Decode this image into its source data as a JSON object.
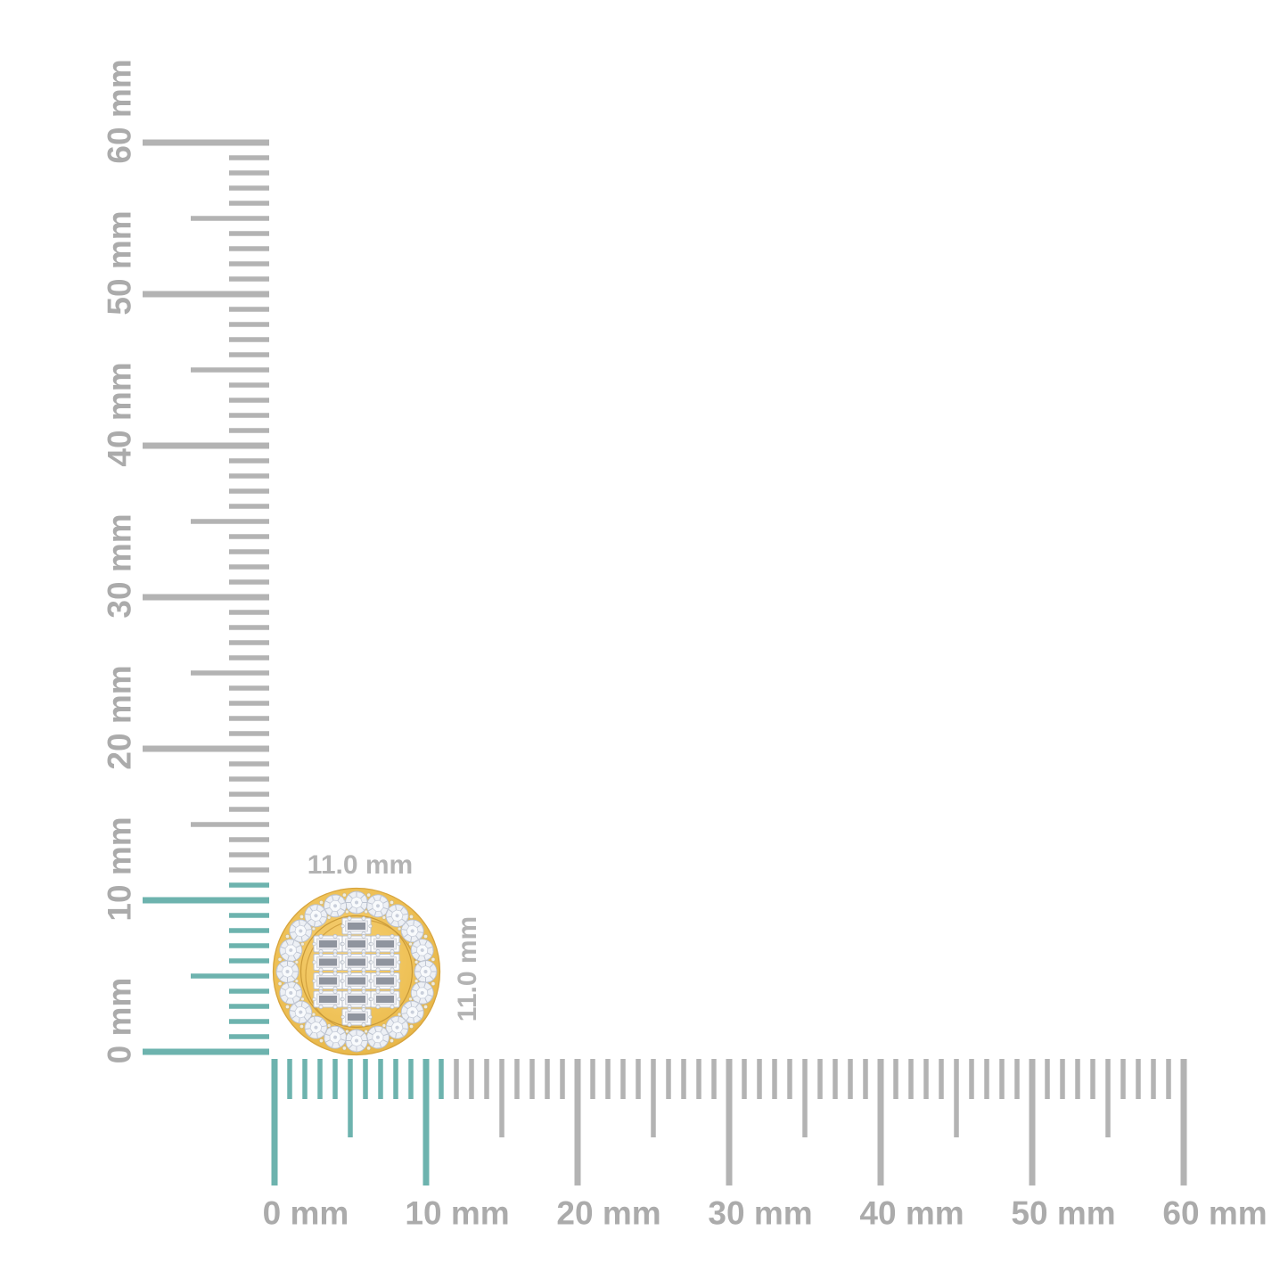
{
  "rulers": {
    "unit": "mm",
    "min_mm": 0,
    "max_mm": 60,
    "minor_step_mm": 1,
    "medium_step_mm": 5,
    "major_step_mm": 10,
    "highlight_extent_mm": 11,
    "tick_color": "#b3b3b3",
    "highlight_color": "#6db3ae",
    "label_color": "#ababab",
    "horizontal_labels": [
      "0 mm",
      "10 mm",
      "20 mm",
      "30 mm",
      "40 mm",
      "50 mm",
      "60 mm"
    ],
    "vertical_labels": [
      "0 mm",
      "10 mm",
      "20 mm",
      "30 mm",
      "40 mm",
      "50 mm",
      "60 mm"
    ]
  },
  "item": {
    "kind": "round-halo-diamond-stud",
    "width_label": "11.0 mm",
    "height_label": "11.0 mm",
    "dimension_label_color": "#b3b3b3",
    "halo_round_stones": 20,
    "baguette_rows": [
      1,
      3,
      3,
      3,
      3,
      1
    ],
    "metal_color": "#edc05e",
    "metal_edge_color": "#d7a43d",
    "stone_color": "#edf0f5",
    "stone_facet_color": "#bec5d2"
  }
}
